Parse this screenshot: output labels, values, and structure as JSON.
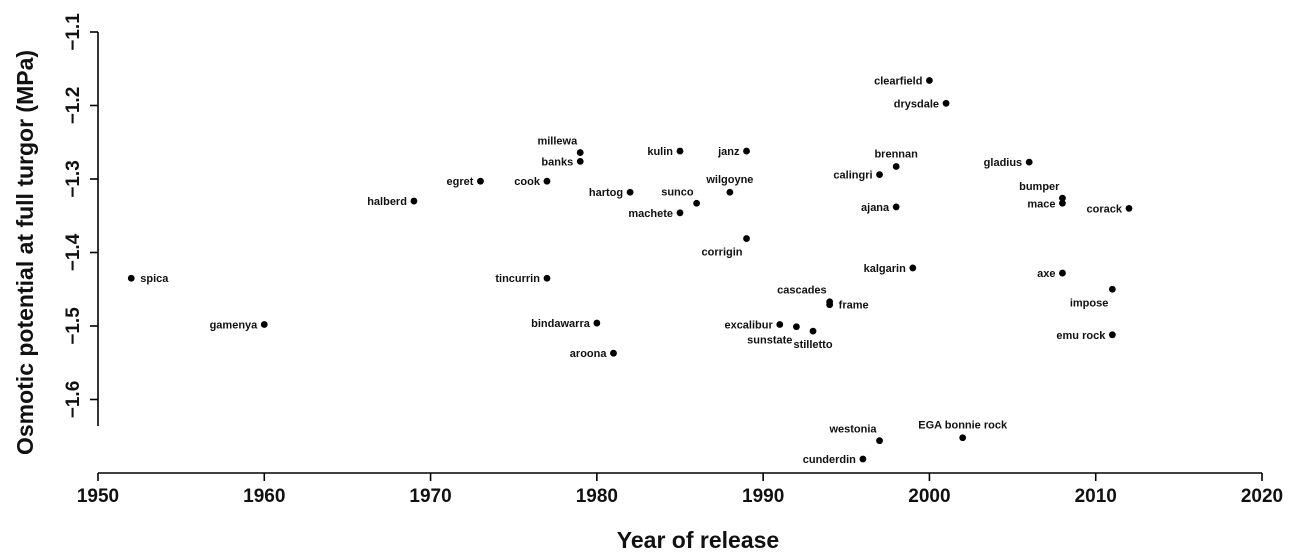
{
  "chart_data": {
    "type": "scatter",
    "title": "",
    "xlabel": "Year of release",
    "ylabel": "Osmotic potential at full turgor (MPa)",
    "xlim": [
      1950,
      2020
    ],
    "ylim": [
      -1.7,
      -1.1
    ],
    "xticks": [
      "1950",
      "1960",
      "1970",
      "1980",
      "1990",
      "2000",
      "2010",
      "2020"
    ],
    "yticks": [
      "-1.1",
      "-1.2",
      "-1.3",
      "-1.4",
      "-1.5",
      "-1.6"
    ],
    "grid": false,
    "colors": {
      "point": "#000000",
      "text": "#111111"
    },
    "points": [
      {
        "label": "spica",
        "x": 1952,
        "y": -1.435,
        "side": "right"
      },
      {
        "label": "gamenya",
        "x": 1960,
        "y": -1.498,
        "side": "left"
      },
      {
        "label": "halberd",
        "x": 1969,
        "y": -1.33,
        "side": "left"
      },
      {
        "label": "egret",
        "x": 1973,
        "y": -1.303,
        "side": "left"
      },
      {
        "label": "cook",
        "x": 1977,
        "y": -1.303,
        "side": "left"
      },
      {
        "label": "tincurrin",
        "x": 1977,
        "y": -1.435,
        "side": "left"
      },
      {
        "label": "millewa",
        "x": 1979,
        "y": -1.264,
        "side": "left-above"
      },
      {
        "label": "banks",
        "x": 1979,
        "y": -1.276,
        "side": "left"
      },
      {
        "label": "bindawarra",
        "x": 1980,
        "y": -1.496,
        "side": "left"
      },
      {
        "label": "aroona",
        "x": 1981,
        "y": -1.537,
        "side": "left"
      },
      {
        "label": "hartog",
        "x": 1982,
        "y": -1.318,
        "side": "left"
      },
      {
        "label": "kulin",
        "x": 1985,
        "y": -1.262,
        "side": "left"
      },
      {
        "label": "machete",
        "x": 1985,
        "y": -1.346,
        "side": "left"
      },
      {
        "label": "sunco",
        "x": 1986,
        "y": -1.333,
        "side": "left-above"
      },
      {
        "label": "wilgoyne",
        "x": 1988,
        "y": -1.318,
        "side": "above"
      },
      {
        "label": "janz",
        "x": 1989,
        "y": -1.262,
        "side": "left"
      },
      {
        "label": "corrigin",
        "x": 1989,
        "y": -1.381,
        "side": "left-below"
      },
      {
        "label": "excalibur",
        "x": 1991,
        "y": -1.498,
        "side": "left"
      },
      {
        "label": "sunstate",
        "x": 1992,
        "y": -1.501,
        "side": "left-below"
      },
      {
        "label": "stilletto",
        "x": 1993,
        "y": -1.507,
        "side": "below"
      },
      {
        "label": "cascades",
        "x": 1994,
        "y": -1.467,
        "side": "left-above"
      },
      {
        "label": "frame",
        "x": 1994,
        "y": -1.471,
        "side": "right"
      },
      {
        "label": "cunderdin",
        "x": 1996,
        "y": -1.681,
        "side": "left"
      },
      {
        "label": "calingri",
        "x": 1997,
        "y": -1.294,
        "side": "left"
      },
      {
        "label": "westonia",
        "x": 1997,
        "y": -1.656,
        "side": "left-above"
      },
      {
        "label": "brennan",
        "x": 1998,
        "y": -1.283,
        "side": "above"
      },
      {
        "label": "ajana",
        "x": 1998,
        "y": -1.338,
        "side": "left"
      },
      {
        "label": "kalgarin",
        "x": 1999,
        "y": -1.421,
        "side": "left"
      },
      {
        "label": "clearfield",
        "x": 2000,
        "y": -1.166,
        "side": "left"
      },
      {
        "label": "drysdale",
        "x": 2001,
        "y": -1.197,
        "side": "left"
      },
      {
        "label": "EGA bonnie rock",
        "x": 2002,
        "y": -1.652,
        "side": "above"
      },
      {
        "label": "gladius",
        "x": 2006,
        "y": -1.277,
        "side": "left"
      },
      {
        "label": "bumper",
        "x": 2008,
        "y": -1.326,
        "side": "left-above"
      },
      {
        "label": "mace",
        "x": 2008,
        "y": -1.333,
        "side": "left"
      },
      {
        "label": "axe",
        "x": 2008,
        "y": -1.428,
        "side": "left"
      },
      {
        "label": "impose",
        "x": 2011,
        "y": -1.45,
        "side": "left-below"
      },
      {
        "label": "emu rock",
        "x": 2011,
        "y": -1.512,
        "side": "left"
      },
      {
        "label": "corack",
        "x": 2012,
        "y": -1.34,
        "side": "left"
      }
    ]
  }
}
